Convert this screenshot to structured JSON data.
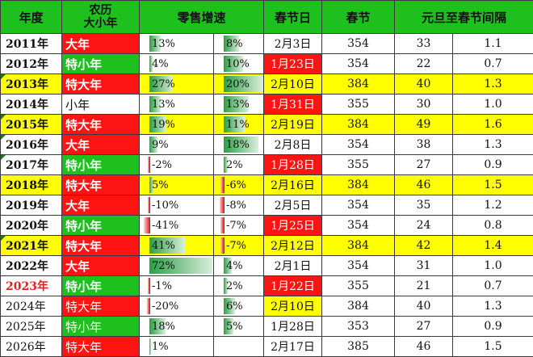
{
  "headers": {
    "year": "年度",
    "lunar": "农历\n大小年",
    "lunar_line1": "农历",
    "lunar_line2": "大小年",
    "sales": "零售增速",
    "spring": "春节日",
    "chunjie": "春节",
    "gap": "元旦至春节间隔"
  },
  "rows": [
    {
      "year": "2011年",
      "lunar": "大年",
      "lunar_type": "big",
      "s1": "13%",
      "s1v": 13,
      "s2": "8%",
      "s2v": 8,
      "spring": "2月3日",
      "spring_red": false,
      "days": "354",
      "gap": "33",
      "ratio": "1.1",
      "hl": false
    },
    {
      "year": "2012年",
      "lunar": "特小年",
      "lunar_type": "small",
      "s1": "4%",
      "s1v": 4,
      "s2": "10%",
      "s2v": 10,
      "spring": "1月23日",
      "spring_red": true,
      "days": "354",
      "gap": "22",
      "ratio": "0.7",
      "hl": false
    },
    {
      "year": "2013年",
      "lunar": "特大年",
      "lunar_type": "big",
      "s1": "27%",
      "s1v": 27,
      "s2": "20%",
      "s2v": 20,
      "spring": "2月10日",
      "spring_red": false,
      "days": "384",
      "gap": "40",
      "ratio": "1.3",
      "hl": true
    },
    {
      "year": "2014年",
      "lunar": "小年",
      "lunar_type": "plainSmall",
      "s1": "13%",
      "s1v": 13,
      "s2": "13%",
      "s2v": 13,
      "spring": "1月31日",
      "spring_red": true,
      "days": "355",
      "gap": "30",
      "ratio": "1.0",
      "hl": false
    },
    {
      "year": "2015年",
      "lunar": "特大年",
      "lunar_type": "big",
      "s1": "19%",
      "s1v": 19,
      "s2": "11%",
      "s2v": 11,
      "spring": "2月19日",
      "spring_red": false,
      "days": "384",
      "gap": "49",
      "ratio": "1.6",
      "hl": true
    },
    {
      "year": "2016年",
      "lunar": "大年",
      "lunar_type": "big",
      "s1": "9%",
      "s1v": 9,
      "s2": "18%",
      "s2v": 18,
      "spring": "2月8日",
      "spring_red": false,
      "days": "354",
      "gap": "38",
      "ratio": "1.3",
      "hl": false
    },
    {
      "year": "2017年",
      "lunar": "特小年",
      "lunar_type": "small",
      "s1": "-2%",
      "s1v": -2,
      "s2": "2%",
      "s2v": 2,
      "spring": "1月28日",
      "spring_red": true,
      "days": "355",
      "gap": "27",
      "ratio": "0.9",
      "hl": false
    },
    {
      "year": "2018年",
      "lunar": "特大年",
      "lunar_type": "big",
      "s1": "5%",
      "s1v": 5,
      "s2": "-6%",
      "s2v": -6,
      "spring": "2月16日",
      "spring_red": false,
      "days": "384",
      "gap": "46",
      "ratio": "1.5",
      "hl": true
    },
    {
      "year": "2019年",
      "lunar": "大年",
      "lunar_type": "big",
      "s1": "-10%",
      "s1v": -10,
      "s2": "-8%",
      "s2v": -8,
      "spring": "2月5日",
      "spring_red": false,
      "days": "354",
      "gap": "35",
      "ratio": "1.2",
      "hl": false
    },
    {
      "year": "2020年",
      "lunar": "特小年",
      "lunar_type": "small",
      "s1": "-41%",
      "s1v": -41,
      "s2": "-7%",
      "s2v": -7,
      "spring": "1月25日",
      "spring_red": true,
      "days": "354",
      "gap": "24",
      "ratio": "0.8",
      "hl": false
    },
    {
      "year": "2021年",
      "lunar": "特大年",
      "lunar_type": "big",
      "s1": "41%",
      "s1v": 41,
      "s2": "-7%",
      "s2v": -7,
      "spring": "2月12日",
      "spring_red": false,
      "days": "384",
      "gap": "42",
      "ratio": "1.4",
      "hl": true
    },
    {
      "year": "2022年",
      "lunar": "大年",
      "lunar_type": "big",
      "s1": "72%",
      "s1v": 72,
      "s2": "4%",
      "s2v": 4,
      "spring": "2月1日",
      "spring_red": false,
      "days": "354",
      "gap": "31",
      "ratio": "1.0",
      "hl": false
    },
    {
      "year": "2023年",
      "lunar": "特小年",
      "lunar_type": "small",
      "s1": "-1%",
      "s1v": -1,
      "s2": "2%",
      "s2v": 2,
      "spring": "1月22日",
      "spring_red": true,
      "days": "355",
      "gap": "21",
      "ratio": "0.7",
      "hl": false,
      "year_red": true
    },
    {
      "year": "2024年",
      "lunar": "特大年",
      "lunar_type": "big",
      "s1": "-20%",
      "s1v": -20,
      "s2": "6%",
      "s2v": 6,
      "spring": "2月10日",
      "spring_red": false,
      "days": "384",
      "gap": "40",
      "ratio": "1.3",
      "hl": false,
      "spring_yellow": true,
      "light": true
    },
    {
      "year": "2025年",
      "lunar": "特小年",
      "lunar_type": "small",
      "s1": "18%",
      "s1v": 18,
      "s2": "5%",
      "s2v": 5,
      "spring": "1月28日",
      "spring_red": false,
      "days": "353",
      "gap": "27",
      "ratio": "0.9",
      "hl": false,
      "light": true
    },
    {
      "year": "2026年",
      "lunar": "特大年",
      "lunar_type": "big",
      "s1": "1%",
      "s1v": 1,
      "s2": "",
      "s2v": 0,
      "spring": "2月17日",
      "spring_red": false,
      "days": "385",
      "gap": "46",
      "ratio": "1.5",
      "hl": false,
      "light": true
    }
  ],
  "colors": {
    "header_green": "#1ec01e",
    "big_red": "#ff1414",
    "small_green": "#1ec01e",
    "highlight_yellow": "#ffff00",
    "bar_pos": "#2e9e47",
    "bar_neg": "#e32b2b"
  }
}
